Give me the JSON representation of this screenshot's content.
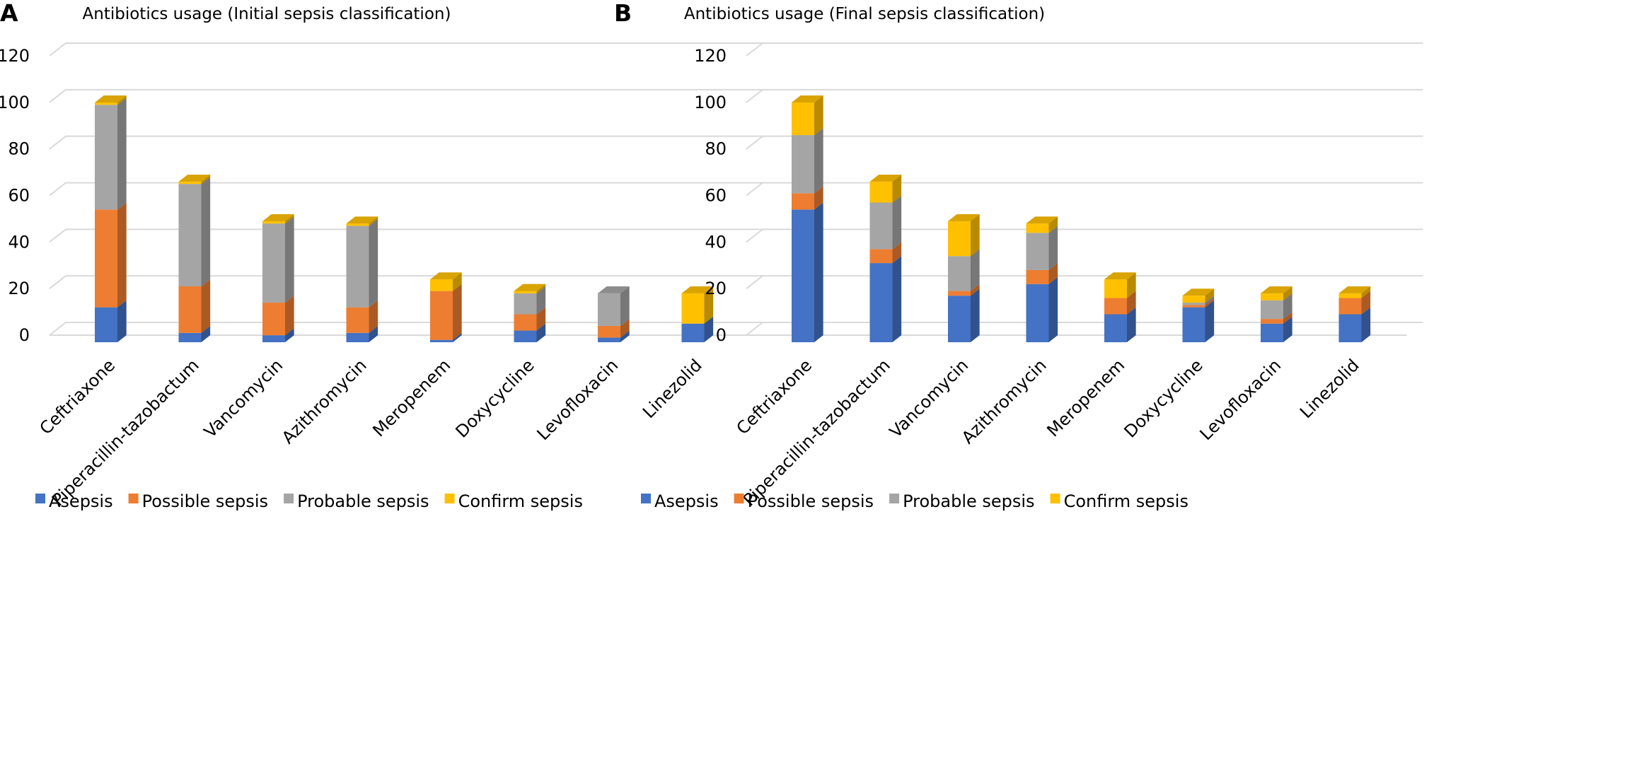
{
  "panels": [
    {
      "letter": "A"
    },
    {
      "letter": "B"
    }
  ],
  "chart_data": [
    {
      "type": "bar",
      "stacked": true,
      "three_d": true,
      "title": "Antibiotics usage (Initial sepsis classification)",
      "categories": [
        "Ceftriaxone",
        "Piperacillin-tazobactum",
        "Vancomycin",
        "Azithromycin",
        "Meropenem",
        "Doxycycline",
        "Levofloxacin",
        "Linezolid"
      ],
      "series": [
        {
          "name": "Asepsis",
          "color": "#4472C4",
          "values": [
            15,
            4,
            3,
            4,
            1,
            5,
            2,
            8
          ]
        },
        {
          "name": "Possible sepsis",
          "color": "#ED7D31",
          "values": [
            42,
            20,
            14,
            11,
            21,
            7,
            5,
            0
          ]
        },
        {
          "name": "Probable sepsis",
          "color": "#A5A5A5",
          "values": [
            45,
            44,
            34,
            35,
            0,
            9,
            14,
            0
          ]
        },
        {
          "name": "Confirm sepsis",
          "color": "#FFC000",
          "values": [
            1,
            1,
            1,
            1,
            5,
            1,
            0,
            13
          ]
        }
      ],
      "yticks": [
        0,
        20,
        40,
        60,
        80,
        100,
        120
      ],
      "ylim": [
        0,
        120
      ],
      "grid": true,
      "legend_position": "bottom"
    },
    {
      "type": "bar",
      "stacked": true,
      "three_d": true,
      "title": "Antibiotics usage (Final sepsis classification)",
      "categories": [
        "Ceftriaxone",
        "Piperacillin-tazobactum",
        "Vancomycin",
        "Azithromycin",
        "Meropenem",
        "Doxycycline",
        "Levofloxacin",
        "Linezolid"
      ],
      "series": [
        {
          "name": "Asepsis",
          "color": "#4472C4",
          "values": [
            57,
            34,
            20,
            25,
            12,
            15,
            8,
            12
          ]
        },
        {
          "name": "Possible sepsis",
          "color": "#ED7D31",
          "values": [
            7,
            6,
            2,
            6,
            7,
            1,
            2,
            7
          ]
        },
        {
          "name": "Probable sepsis",
          "color": "#A5A5A5",
          "values": [
            25,
            20,
            15,
            16,
            0,
            1,
            8,
            0
          ]
        },
        {
          "name": "Confirm sepsis",
          "color": "#FFC000",
          "values": [
            14,
            9,
            15,
            4,
            8,
            3,
            3,
            2
          ]
        }
      ],
      "yticks": [
        0,
        20,
        40,
        60,
        80,
        100,
        120
      ],
      "ylim": [
        0,
        120
      ],
      "grid": true,
      "legend_position": "bottom"
    }
  ]
}
